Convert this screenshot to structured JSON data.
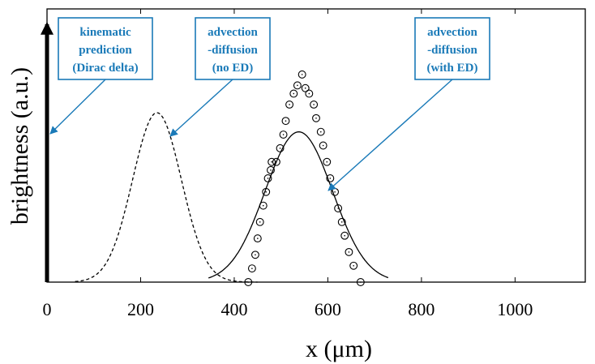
{
  "chart_data": {
    "type": "line",
    "xlabel": "x (μm)",
    "ylabel": "brightness (a.u.)",
    "xlim": [
      0,
      1150
    ],
    "ylim": [
      0,
      1
    ],
    "x_ticks": [
      "0",
      "200",
      "400",
      "600",
      "800",
      "1000"
    ],
    "grid": false,
    "series": [
      {
        "style": "dashed",
        "curve": "gaussian",
        "mu": 235,
        "sigma": 52,
        "peak": 0.62,
        "x_range": [
          60,
          450
        ]
      },
      {
        "style": "solid",
        "curve": "gaussian",
        "mu": 538,
        "sigma": 72,
        "peak": 0.55,
        "x_range": [
          345,
          730
        ]
      },
      {
        "style": "circles",
        "x": [
          430,
          438,
          445,
          450,
          455,
          462,
          468,
          472,
          478,
          480,
          490,
          498,
          505,
          510,
          518,
          527,
          535,
          545,
          552,
          560,
          570,
          575,
          585,
          590,
          598,
          605,
          615,
          622,
          630,
          636,
          645,
          655,
          670
        ],
        "y": [
          0.0,
          0.05,
          0.1,
          0.16,
          0.22,
          0.28,
          0.33,
          0.38,
          0.41,
          0.44,
          0.44,
          0.49,
          0.54,
          0.59,
          0.65,
          0.69,
          0.72,
          0.76,
          0.71,
          0.69,
          0.65,
          0.6,
          0.55,
          0.5,
          0.44,
          0.38,
          0.33,
          0.27,
          0.22,
          0.17,
          0.11,
          0.06,
          0.0
        ]
      },
      {
        "style": "vertical-arrow",
        "x": 0,
        "note": "Dirac delta"
      }
    ],
    "annotations": [
      {
        "lines": [
          "kinematic",
          "prediction",
          "(Dirac delta)"
        ]
      },
      {
        "lines": [
          "advection",
          "-diffusion",
          "(no ED)"
        ]
      },
      {
        "lines": [
          "advection",
          "-diffusion",
          "(with ED)"
        ]
      }
    ],
    "colors": {
      "annotation": "#1a7ab8",
      "lines": "#000000"
    }
  }
}
